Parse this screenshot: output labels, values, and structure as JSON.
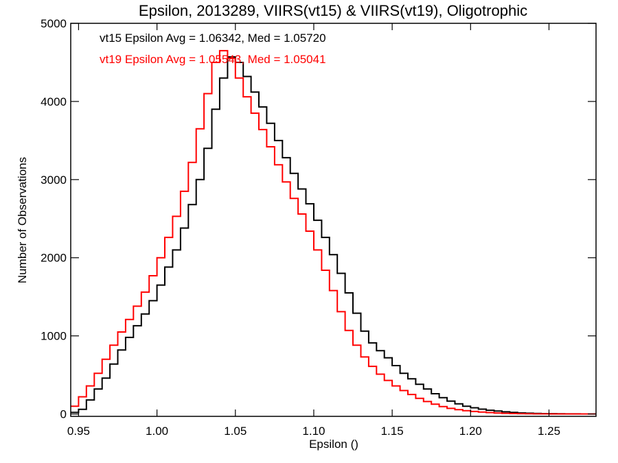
{
  "chart_data": {
    "type": "line",
    "title": "Epsilon, 2013289, VIIRS(vt15) & VIIRS(vt19), Oligotrophic",
    "xlabel": "Epsilon ()",
    "ylabel": "Number of Observations",
    "xlim": [
      0.945,
      1.28
    ],
    "ylim": [
      -30,
      5000
    ],
    "xticks": [
      0.95,
      1.0,
      1.05,
      1.1,
      1.15,
      1.2,
      1.25
    ],
    "xtick_labels": [
      "0.95",
      "1.00",
      "1.05",
      "1.10",
      "1.15",
      "1.20",
      "1.25"
    ],
    "yticks": [
      0,
      1000,
      2000,
      3000,
      4000,
      5000
    ],
    "ytick_labels": [
      "0",
      "1000",
      "2000",
      "3000",
      "4000",
      "5000"
    ],
    "grid": false,
    "annotations": [
      {
        "text": "vt15 Epsilon Avg = 1.06342, Med = 1.05720",
        "color": "#000000"
      },
      {
        "text": "vt19 Epsilon Avg = 1.05543, Med = 1.05041",
        "color": "#ff0000"
      }
    ],
    "series": [
      {
        "color": "#000000",
        "x": [
          0.945,
          0.95,
          0.955,
          0.96,
          0.965,
          0.97,
          0.975,
          0.98,
          0.985,
          0.99,
          0.995,
          1.0,
          1.005,
          1.01,
          1.015,
          1.02,
          1.025,
          1.03,
          1.035,
          1.04,
          1.045,
          1.05,
          1.055,
          1.06,
          1.065,
          1.07,
          1.075,
          1.08,
          1.085,
          1.09,
          1.095,
          1.1,
          1.105,
          1.11,
          1.115,
          1.12,
          1.125,
          1.13,
          1.135,
          1.14,
          1.145,
          1.15,
          1.155,
          1.16,
          1.165,
          1.17,
          1.175,
          1.18,
          1.185,
          1.19,
          1.195,
          1.2,
          1.205,
          1.21,
          1.215,
          1.22,
          1.225,
          1.23,
          1.235,
          1.24,
          1.245,
          1.25,
          1.255,
          1.26,
          1.265,
          1.27,
          1.275,
          1.28
        ],
        "values": [
          20,
          60,
          180,
          320,
          460,
          640,
          820,
          980,
          1130,
          1280,
          1450,
          1650,
          1880,
          2100,
          2380,
          2680,
          3000,
          3400,
          3900,
          4300,
          4570,
          4500,
          4320,
          4120,
          3930,
          3720,
          3500,
          3280,
          3080,
          2880,
          2690,
          2480,
          2260,
          2040,
          1800,
          1550,
          1290,
          1060,
          910,
          810,
          720,
          620,
          520,
          450,
          380,
          320,
          260,
          210,
          165,
          130,
          100,
          80,
          62,
          48,
          38,
          28,
          20,
          14,
          10,
          7,
          5,
          4,
          3,
          2,
          2,
          1,
          1,
          1
        ]
      },
      {
        "color": "#ff0000",
        "x": [
          0.945,
          0.95,
          0.955,
          0.96,
          0.965,
          0.97,
          0.975,
          0.98,
          0.985,
          0.99,
          0.995,
          1.0,
          1.005,
          1.01,
          1.015,
          1.02,
          1.025,
          1.03,
          1.035,
          1.04,
          1.045,
          1.05,
          1.055,
          1.06,
          1.065,
          1.07,
          1.075,
          1.08,
          1.085,
          1.09,
          1.095,
          1.1,
          1.105,
          1.11,
          1.115,
          1.12,
          1.125,
          1.13,
          1.135,
          1.14,
          1.145,
          1.15,
          1.155,
          1.16,
          1.165,
          1.17,
          1.175,
          1.18,
          1.185,
          1.19,
          1.195,
          1.2,
          1.205,
          1.21,
          1.215,
          1.22,
          1.225,
          1.23,
          1.235,
          1.24,
          1.245,
          1.25,
          1.255,
          1.26,
          1.265,
          1.27,
          1.275,
          1.28
        ],
        "values": [
          100,
          220,
          360,
          520,
          700,
          880,
          1050,
          1210,
          1380,
          1560,
          1770,
          2000,
          2260,
          2530,
          2850,
          3220,
          3650,
          4100,
          4500,
          4650,
          4550,
          4300,
          4060,
          3850,
          3640,
          3420,
          3190,
          2970,
          2760,
          2560,
          2340,
          2100,
          1840,
          1580,
          1310,
          1070,
          880,
          730,
          610,
          510,
          430,
          360,
          300,
          250,
          200,
          160,
          125,
          95,
          72,
          55,
          42,
          32,
          24,
          18,
          13,
          9,
          6,
          4,
          3,
          2,
          2,
          1,
          1,
          1,
          1,
          1,
          1,
          1
        ]
      }
    ]
  }
}
